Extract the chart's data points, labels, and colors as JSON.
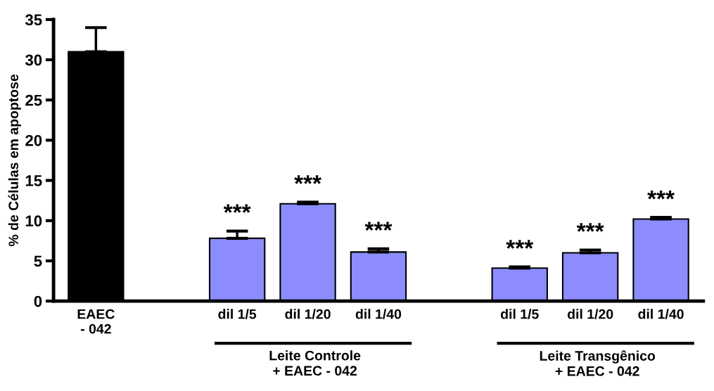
{
  "chart_data": {
    "type": "bar",
    "ylabel": "% de Células em apoptose",
    "categories": [
      "EAEC\n- 042",
      null,
      "dil 1/5",
      "dil 1/20",
      "dil 1/40",
      null,
      "dil 1/5",
      "dil 1/20",
      "dil 1/40"
    ],
    "values": [
      31,
      null,
      7.8,
      12.1,
      6.1,
      null,
      4.1,
      6.0,
      10.2
    ],
    "errors": [
      3,
      null,
      0.9,
      0.2,
      0.4,
      null,
      0.15,
      0.35,
      0.2
    ],
    "colors": [
      "#000000",
      null,
      "#8c8cff",
      "#8c8cff",
      "#8c8cff",
      null,
      "#8c8cff",
      "#8c8cff",
      "#8c8cff"
    ],
    "value_labels": [
      null,
      null,
      "***",
      "***",
      "***",
      null,
      "***",
      "***",
      "***"
    ],
    "annotations": [
      "Leite Controle\n+ EAEC - 042",
      "Leite Transgênico\n+ EAEC - 042"
    ],
    "ylim": [
      0,
      35
    ],
    "yticks": [
      0,
      5,
      10,
      15,
      20,
      25,
      30,
      35
    ],
    "grid": false,
    "legend": false
  }
}
